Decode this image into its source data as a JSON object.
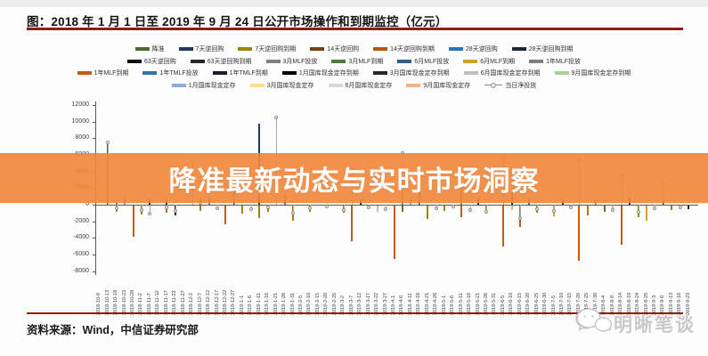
{
  "page": {
    "title": "图：2018 年 1 月 1 日至 2019 年 9 月 24 日公开市场操作和到期监控（亿元）",
    "source": "资料来源：Wind，中信证券研究部",
    "logo_text": "明晰笔谈",
    "watermark_text": "降准最新动态与实时市场洞察",
    "accent_red": "#8f1d12",
    "watermark_color": "#f0873c"
  },
  "chart_data": {
    "type": "bar",
    "title": "2018年1月1日至2019年9月24日公开市场操作和到期监控（亿元）",
    "ylabel": "亿元",
    "ylim": [
      -8000,
      12000
    ],
    "yticks": [
      12000,
      10000,
      8000,
      6000,
      4000,
      2000,
      0,
      -2000,
      -4000,
      -6000,
      -8000
    ],
    "grid": false,
    "legend_position": "top",
    "legend_rows": [
      7,
      7,
      7,
      5
    ],
    "legend": [
      {
        "label": "降准",
        "color": "#4e6b2f"
      },
      {
        "label": "7天逆回购",
        "color": "#1f3864"
      },
      {
        "label": "7天逆回购到期",
        "color": "#9c8412"
      },
      {
        "label": "14天逆回购",
        "color": "#7b3f10"
      },
      {
        "label": "14天逆回购到期",
        "color": "#b55514"
      },
      {
        "label": "28天逆回购",
        "color": "#2e74b5"
      },
      {
        "label": "28天逆回购到期",
        "color": "#1c2733"
      },
      {
        "label": "63天逆回购",
        "color": "#0d0d0d"
      },
      {
        "label": "63天逆回购到期",
        "color": "#262626"
      },
      {
        "label": "3月MLF投放",
        "color": "#808080"
      },
      {
        "label": "3月MLF到期",
        "color": "#4e7b3a"
      },
      {
        "label": "6月MLF投放",
        "color": "#2e5e8c"
      },
      {
        "label": "6月MLF到期",
        "color": "#cfa22e"
      },
      {
        "label": "1年MLF投放",
        "color": "#7f7f7f"
      },
      {
        "label": "1年MLF到期",
        "color": "#c55a11"
      },
      {
        "label": "1年TMLF投放",
        "color": "#2e74b5"
      },
      {
        "label": "1年TMLF到期",
        "color": "#17202a"
      },
      {
        "label": "1月国库现金定存到期",
        "color": "#000000"
      },
      {
        "label": "3月国库现金定存到期",
        "color": "#262626"
      },
      {
        "label": "6月国库现金定存到期",
        "color": "#bfbfbf"
      },
      {
        "label": "9月国库现金定存到期",
        "color": "#a9d18e"
      },
      {
        "label": "1月国库现金定存",
        "color": "#8eaadb"
      },
      {
        "label": "3月国库现金定存",
        "color": "#ffe08a"
      },
      {
        "label": "6月国库现金定存",
        "color": "#d9d9d9"
      },
      {
        "label": "9月国库现金定存",
        "color": "#f4b183"
      },
      {
        "label": "当日净投放",
        "color": "#a6a6a6",
        "marker": "line-circle"
      }
    ],
    "x_labels": [
      "2018-10-8",
      "2018-10-13",
      "2018-10-18",
      "2018-10-23",
      "2018-10-28",
      "2018-11-2",
      "2018-11-7",
      "2018-11-12",
      "2018-11-17",
      "2018-11-22",
      "2018-11-27",
      "2018-12-2",
      "2018-12-7",
      "2018-12-12",
      "2018-12-17",
      "2018-12-22",
      "2018-12-27",
      "2019-1-1",
      "2019-1-6",
      "2019-1-11",
      "2019-1-16",
      "2019-1-21",
      "2019-1-26",
      "2019-1-31",
      "2019-2-5",
      "2019-2-10",
      "2019-2-15",
      "2019-2-20",
      "2019-2-25",
      "2019-3-2",
      "2019-3-7",
      "2019-3-12",
      "2019-3-17",
      "2019-3-22",
      "2019-3-27",
      "2019-4-1",
      "2019-4-6",
      "2019-4-11",
      "2019-4-16",
      "2019-4-21",
      "2019-4-26",
      "2019-5-1",
      "2019-5-6",
      "2019-5-11",
      "2019-5-16",
      "2019-5-21",
      "2019-5-26",
      "2019-5-31",
      "2019-6-5",
      "2019-6-10",
      "2019-6-15",
      "2019-6-20",
      "2019-6-25",
      "2019-6-30",
      "2019-7-5",
      "2019-7-10",
      "2019-7-15",
      "2019-7-20",
      "2019-7-25",
      "2019-7-30",
      "2019-8-4",
      "2019-8-9",
      "2019-8-14",
      "2019-8-19",
      "2019-8-24",
      "2019-8-29",
      "2019-9-3",
      "2019-9-8",
      "2019-9-13",
      "2019-9-18",
      "2019-9-23"
    ],
    "bars": [
      {
        "i": 1,
        "s": "降准",
        "v": 7500
      },
      {
        "i": 2,
        "s": "7天逆回购到期",
        "v": -800
      },
      {
        "i": 2,
        "s": "3月MLF投放",
        "v": 400
      },
      {
        "i": 3,
        "s": "7天逆回购",
        "v": 600
      },
      {
        "i": 3,
        "s": "1月国库现金定存",
        "v": 1200
      },
      {
        "i": 4,
        "s": "1年MLF到期",
        "v": -3700
      },
      {
        "i": 5,
        "s": "7天逆回购到期",
        "v": -1100
      },
      {
        "i": 6,
        "s": "63天逆回购",
        "v": 700
      },
      {
        "i": 8,
        "s": "7天逆回购",
        "v": 600
      },
      {
        "i": 8,
        "s": "7天逆回购到期",
        "v": -900
      },
      {
        "i": 9,
        "s": "3月国库现金定存到期",
        "v": -1200
      },
      {
        "i": 12,
        "s": "7天逆回购",
        "v": 800
      },
      {
        "i": 12,
        "s": "7天逆回购到期",
        "v": -600
      },
      {
        "i": 13,
        "s": "1年MLF投放",
        "v": 1000
      },
      {
        "i": 15,
        "s": "1年MLF到期",
        "v": -2300
      },
      {
        "i": 16,
        "s": "7天逆回购",
        "v": 1500
      },
      {
        "i": 17,
        "s": "7天逆回购到期",
        "v": -1000
      },
      {
        "i": 19,
        "s": "7天逆回购",
        "v": 9800
      },
      {
        "i": 19,
        "s": "7天逆回购到期",
        "v": -1500
      },
      {
        "i": 20,
        "s": "7天逆回购到期",
        "v": -800
      },
      {
        "i": 22,
        "s": "28天逆回购",
        "v": 1200
      },
      {
        "i": 23,
        "s": "7天逆回购到期",
        "v": -1800
      },
      {
        "i": 25,
        "s": "7天逆回购到期",
        "v": -700
      },
      {
        "i": 27,
        "s": "3月国库现金定存",
        "v": 500
      },
      {
        "i": 29,
        "s": "7天逆回购到期",
        "v": -900
      },
      {
        "i": 30,
        "s": "1年MLF到期",
        "v": -4300
      },
      {
        "i": 31,
        "s": "7天逆回购",
        "v": 600
      },
      {
        "i": 33,
        "s": "6月国库现金定存到期",
        "v": -800
      },
      {
        "i": 35,
        "s": "1年MLF到期",
        "v": -6400
      },
      {
        "i": 36,
        "s": "3月MLF到期",
        "v": -700
      },
      {
        "i": 36,
        "s": "1年TMLF投放",
        "v": 2600
      },
      {
        "i": 37,
        "s": "1月国库现金定存",
        "v": 1000
      },
      {
        "i": 38,
        "s": "7天逆回购",
        "v": 1600
      },
      {
        "i": 39,
        "s": "7天逆回购到期",
        "v": -1600
      },
      {
        "i": 41,
        "s": "7天逆回购到期",
        "v": -600
      },
      {
        "i": 43,
        "s": "1年MLF投放",
        "v": 2000
      },
      {
        "i": 43,
        "s": "1年MLF到期",
        "v": -1400
      },
      {
        "i": 45,
        "s": "7天逆回购",
        "v": 800
      },
      {
        "i": 46,
        "s": "7天逆回购到期",
        "v": -1000
      },
      {
        "i": 48,
        "s": "1年MLF到期",
        "v": -4900
      },
      {
        "i": 49,
        "s": "7天逆回购",
        "v": 1500
      },
      {
        "i": 49,
        "s": "9月国库现金定存到期",
        "v": -500
      },
      {
        "i": 50,
        "s": "1年MLF到期",
        "v": -2600
      },
      {
        "i": 50,
        "s": "7天逆回购到期",
        "v": -1500
      },
      {
        "i": 51,
        "s": "28天逆回购",
        "v": 800
      },
      {
        "i": 52,
        "s": "7天逆回购到期",
        "v": -900
      },
      {
        "i": 54,
        "s": "6月MLF到期",
        "v": -1300
      },
      {
        "i": 55,
        "s": "7天逆回购",
        "v": 600
      },
      {
        "i": 57,
        "s": "1年MLF到期",
        "v": -6600
      },
      {
        "i": 58,
        "s": "7天逆回购到期",
        "v": -1200
      },
      {
        "i": 59,
        "s": "3月MLF投放",
        "v": 600
      },
      {
        "i": 60,
        "s": "3月MLF到期",
        "v": -800
      },
      {
        "i": 61,
        "s": "9月国库现金定存到期",
        "v": -600
      },
      {
        "i": 62,
        "s": "1年MLF到期",
        "v": -4700
      },
      {
        "i": 63,
        "s": "7天逆回购",
        "v": 900
      },
      {
        "i": 64,
        "s": "7天逆回购到期",
        "v": -1400
      },
      {
        "i": 65,
        "s": "6月MLF到期",
        "v": -1800
      },
      {
        "i": 67,
        "s": "7天逆回购",
        "v": 800
      },
      {
        "i": 68,
        "s": "7天逆回购到期",
        "v": -500
      },
      {
        "i": 70,
        "s": "3月国库现金定存到期",
        "v": -400
      }
    ],
    "net_series_name": "当日净投放",
    "net": [
      {
        "i": 1,
        "v": 7500
      },
      {
        "i": 2,
        "v": -400
      },
      {
        "i": 3,
        "v": 300
      },
      {
        "i": 5,
        "v": -600
      },
      {
        "i": 6,
        "v": -1100
      },
      {
        "i": 8,
        "v": -300
      },
      {
        "i": 9,
        "v": -700
      },
      {
        "i": 11,
        "v": 5200
      },
      {
        "i": 12,
        "v": 200
      },
      {
        "i": 14,
        "v": -400
      },
      {
        "i": 16,
        "v": 900
      },
      {
        "i": 18,
        "v": -500
      },
      {
        "i": 20,
        "v": -300
      },
      {
        "i": 21,
        "v": 10500
      },
      {
        "i": 23,
        "v": -1000
      },
      {
        "i": 25,
        "v": -400
      },
      {
        "i": 27,
        "v": -200
      },
      {
        "i": 29,
        "v": -600
      },
      {
        "i": 30,
        "v": 4300
      },
      {
        "i": 32,
        "v": -300
      },
      {
        "i": 34,
        "v": -500
      },
      {
        "i": 36,
        "v": 6200
      },
      {
        "i": 38,
        "v": 700
      },
      {
        "i": 40,
        "v": -400
      },
      {
        "i": 42,
        "v": -200
      },
      {
        "i": 44,
        "v": -600
      },
      {
        "i": 46,
        "v": -900
      },
      {
        "i": 48,
        "v": 5700
      },
      {
        "i": 50,
        "v": -1600
      },
      {
        "i": 52,
        "v": -500
      },
      {
        "i": 54,
        "v": -800
      },
      {
        "i": 56,
        "v": -300
      },
      {
        "i": 57,
        "v": 5500
      },
      {
        "i": 59,
        "v": 400
      },
      {
        "i": 61,
        "v": -600
      },
      {
        "i": 62,
        "v": 3500
      },
      {
        "i": 64,
        "v": -900
      },
      {
        "i": 66,
        "v": -400
      },
      {
        "i": 67,
        "v": 2600
      },
      {
        "i": 69,
        "v": -300
      }
    ]
  }
}
